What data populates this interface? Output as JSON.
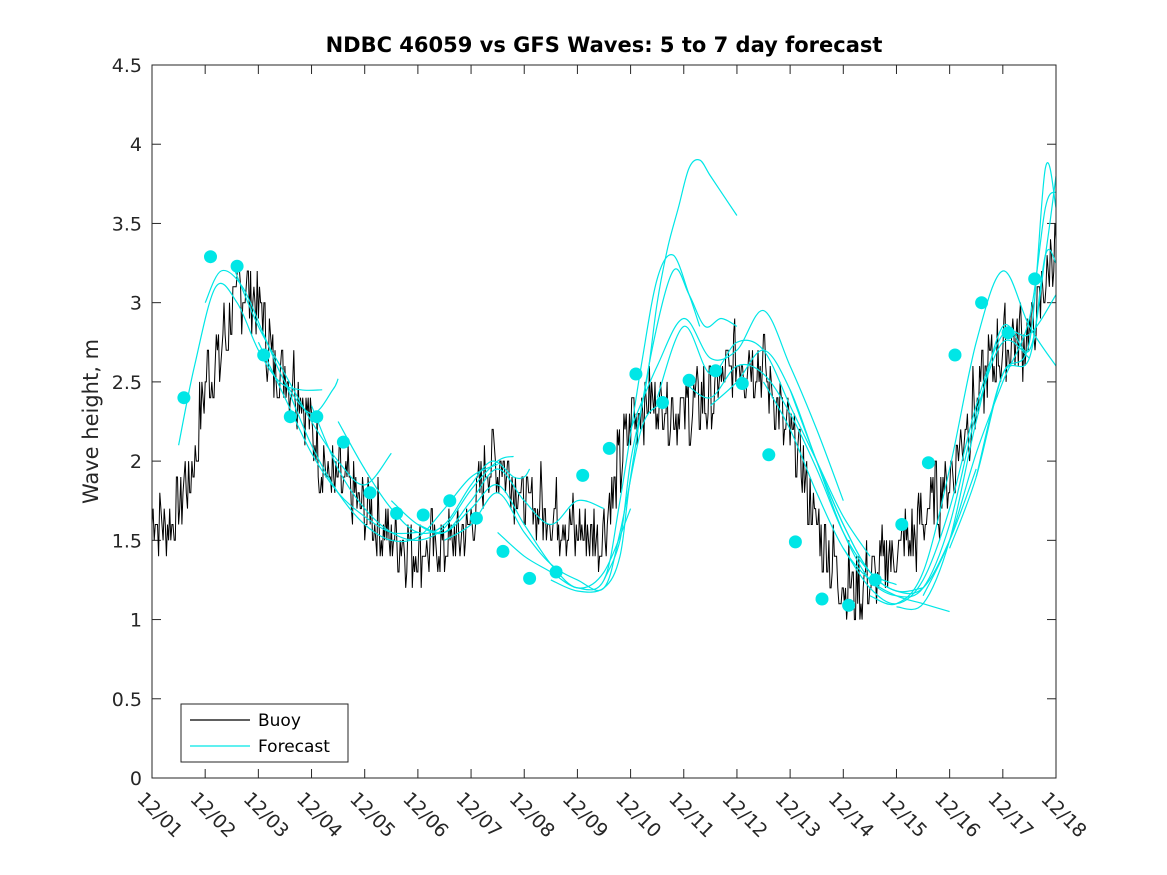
{
  "colors": {
    "buoy": "#000000",
    "forecast": "#00e6e6",
    "axis": "#262626",
    "background": "#ffffff"
  },
  "chart_data": {
    "type": "line",
    "title": "NDBC 46059 vs GFS Waves: 5 to 7 day forecast",
    "xlabel": "",
    "ylabel": "Wave height, m",
    "xlim": [
      0,
      17
    ],
    "ylim": [
      0,
      4.5
    ],
    "yticks": [
      0,
      0.5,
      1,
      1.5,
      2,
      2.5,
      3,
      3.5,
      4,
      4.5
    ],
    "ytick_labels": [
      "0",
      "0.5",
      "1",
      "1.5",
      "2",
      "2.5",
      "3",
      "3.5",
      "4",
      "4.5"
    ],
    "xticks": [
      0,
      1,
      2,
      3,
      4,
      5,
      6,
      7,
      8,
      9,
      10,
      11,
      12,
      13,
      14,
      15,
      16,
      17
    ],
    "xtick_labels": [
      "12/01",
      "12/02",
      "12/03",
      "12/04",
      "12/05",
      "12/06",
      "12/07",
      "12/08",
      "12/09",
      "12/10",
      "12/11",
      "12/12",
      "12/13",
      "12/14",
      "12/15",
      "12/16",
      "12/17",
      "12/18"
    ],
    "legend": {
      "position": "bottom-left",
      "entries": [
        "Buoy",
        "Forecast"
      ]
    },
    "buoy_trend": {
      "x": [
        0,
        0.3,
        0.5,
        0.8,
        1.0,
        1.3,
        1.7,
        2.0,
        2.3,
        2.7,
        3.0,
        3.3,
        3.7,
        4.0,
        4.5,
        5.0,
        5.5,
        6.0,
        6.3,
        6.6,
        7.0,
        7.3,
        7.7,
        8.0,
        8.4,
        8.6,
        9.0,
        9.3,
        9.7,
        10.0,
        10.5,
        11.0,
        11.5,
        11.8,
        12.2,
        12.5,
        12.8,
        13.0,
        13.3,
        13.7,
        14.0,
        14.3,
        14.7,
        15.0,
        15.3,
        15.7,
        16.0,
        16.3,
        16.6,
        17.0
      ],
      "y": [
        1.65,
        1.6,
        1.7,
        2.0,
        2.5,
        2.7,
        3.1,
        3.0,
        2.6,
        2.5,
        2.2,
        1.9,
        1.8,
        1.7,
        1.5,
        1.45,
        1.45,
        1.6,
        2.0,
        2.0,
        1.75,
        1.7,
        1.65,
        1.55,
        1.5,
        1.7,
        2.25,
        2.4,
        2.35,
        2.3,
        2.4,
        2.65,
        2.6,
        2.3,
        2.0,
        1.6,
        1.35,
        1.25,
        1.2,
        1.3,
        1.45,
        1.5,
        1.75,
        1.9,
        2.2,
        2.55,
        2.7,
        2.75,
        2.85,
        3.4
      ]
    },
    "buoy_amplitude": 0.22,
    "forecast_runs": [
      {
        "x": [
          0.5,
          0.8,
          1.2,
          1.6,
          2.0,
          2.4,
          2.8,
          3.2
        ],
        "y": [
          2.1,
          2.6,
          3.1,
          3.0,
          2.7,
          2.5,
          2.45,
          2.45
        ]
      },
      {
        "x": [
          1.0,
          1.3,
          1.7,
          2.1,
          2.5,
          3.0,
          3.4,
          3.5
        ],
        "y": [
          3.0,
          3.2,
          3.1,
          2.8,
          2.5,
          2.3,
          2.45,
          2.52
        ]
      },
      {
        "x": [
          1.5,
          2.0,
          2.5,
          3.0,
          3.5,
          4.0,
          4.5
        ],
        "y": [
          3.25,
          2.85,
          2.55,
          2.25,
          2.0,
          1.85,
          2.05
        ]
      },
      {
        "x": [
          2.0,
          2.5,
          3.0,
          3.5,
          4.0,
          4.5,
          5.0
        ],
        "y": [
          2.75,
          2.4,
          2.05,
          1.8,
          1.65,
          1.55,
          1.55
        ]
      },
      {
        "x": [
          2.5,
          3.0,
          3.5,
          4.0,
          4.5,
          5.0,
          5.5,
          6.0,
          6.5
        ],
        "y": [
          2.5,
          2.1,
          1.8,
          1.6,
          1.5,
          1.52,
          1.7,
          1.9,
          1.98
        ]
      },
      {
        "x": [
          3.0,
          3.5,
          4.0,
          4.5,
          5.0,
          5.5,
          6.0,
          6.5,
          6.8
        ],
        "y": [
          2.35,
          1.95,
          1.7,
          1.55,
          1.5,
          1.58,
          1.82,
          2.0,
          2.03
        ]
      },
      {
        "x": [
          3.5,
          4.0,
          4.5,
          5.0,
          5.5,
          6.0,
          6.4,
          6.8,
          7.0,
          7.1
        ],
        "y": [
          2.25,
          1.95,
          1.7,
          1.55,
          1.6,
          1.85,
          2.0,
          1.9,
          1.9,
          1.95
        ]
      },
      {
        "x": [
          4.5,
          5.0,
          5.5,
          6.0,
          6.5,
          7.0,
          7.5,
          8.0,
          8.5
        ],
        "y": [
          1.75,
          1.6,
          1.55,
          1.75,
          1.95,
          1.75,
          1.6,
          1.75,
          1.7
        ]
      },
      {
        "x": [
          5.0,
          5.5,
          6.0,
          6.5,
          7.0,
          7.5,
          8.0,
          8.5,
          9.0
        ],
        "y": [
          1.6,
          1.55,
          1.7,
          1.85,
          1.6,
          1.35,
          1.2,
          1.3,
          1.7
        ]
      },
      {
        "x": [
          5.5,
          6.0,
          6.5,
          7.0,
          7.5,
          8.0,
          8.5,
          8.8,
          9.2,
          9.5
        ],
        "y": [
          1.5,
          1.6,
          1.8,
          1.55,
          1.35,
          1.25,
          1.2,
          1.55,
          2.2,
          2.35
        ]
      },
      {
        "x": [
          6.5,
          7.0,
          7.5,
          8.0,
          8.5,
          8.8,
          9.2,
          9.5,
          9.8,
          10.1,
          10.3
        ],
        "y": [
          1.55,
          1.4,
          1.3,
          1.2,
          1.25,
          1.75,
          2.6,
          3.15,
          3.3,
          3.05,
          2.85
        ]
      },
      {
        "x": [
          7.5,
          8.0,
          8.5,
          8.8,
          9.0,
          9.4,
          9.8,
          10.1,
          10.4,
          10.7,
          11.0
        ],
        "y": [
          1.25,
          1.18,
          1.2,
          1.4,
          1.9,
          2.7,
          3.2,
          3.05,
          2.85,
          2.9,
          2.85
        ]
      },
      {
        "x": [
          8.5,
          8.8,
          9.0,
          9.3,
          9.5,
          9.7,
          9.9,
          10.1,
          10.3,
          10.5,
          10.8,
          11.0
        ],
        "y": [
          1.25,
          1.5,
          2.0,
          2.5,
          3.0,
          3.35,
          3.6,
          3.85,
          3.9,
          3.8,
          3.65,
          3.55
        ]
      },
      {
        "x": [
          9.0,
          9.5,
          10.0,
          10.5,
          11.0,
          11.5,
          12.0,
          12.5,
          13.0
        ],
        "y": [
          2.2,
          2.6,
          2.9,
          2.65,
          2.7,
          2.95,
          2.6,
          2.2,
          1.75
        ]
      },
      {
        "x": [
          9.5,
          10.0,
          10.5,
          11.0,
          11.5,
          12.0,
          12.5,
          13.0,
          13.5
        ],
        "y": [
          2.4,
          2.85,
          2.55,
          2.75,
          2.7,
          2.35,
          2.0,
          1.65,
          1.4
        ]
      },
      {
        "x": [
          10.0,
          10.5,
          11.0,
          11.5,
          12.0,
          12.5,
          13.0,
          13.5,
          14.0
        ],
        "y": [
          2.5,
          2.4,
          2.6,
          2.55,
          2.3,
          1.95,
          1.55,
          1.3,
          1.22
        ]
      },
      {
        "x": [
          10.5,
          11.0,
          11.5,
          12.0,
          12.5,
          13.0,
          13.5,
          14.0,
          14.5
        ],
        "y": [
          2.35,
          2.5,
          2.7,
          2.45,
          2.0,
          1.6,
          1.3,
          1.18,
          1.2
        ]
      },
      {
        "x": [
          11.5,
          12.0,
          12.5,
          13.0,
          13.5,
          14.0,
          14.5,
          15.0
        ],
        "y": [
          2.5,
          2.2,
          1.8,
          1.45,
          1.25,
          1.15,
          1.1,
          1.05
        ]
      },
      {
        "x": [
          12.0,
          12.5,
          13.0,
          13.5,
          14.0,
          14.5,
          15.0,
          15.5
        ],
        "y": [
          2.45,
          2.0,
          1.6,
          1.3,
          1.18,
          1.2,
          1.5,
          1.95
        ]
      },
      {
        "x": [
          12.5,
          13.0,
          13.5,
          14.0,
          14.5,
          15.0,
          15.5,
          16.0,
          16.5
        ],
        "y": [
          2.0,
          1.55,
          1.25,
          1.15,
          1.2,
          1.6,
          2.3,
          2.75,
          2.65
        ]
      },
      {
        "x": [
          13.0,
          13.5,
          14.0,
          14.5,
          15.0,
          15.5,
          16.0,
          16.5,
          17.0
        ],
        "y": [
          1.45,
          1.2,
          1.1,
          1.25,
          1.7,
          2.35,
          2.8,
          2.8,
          3.05
        ]
      },
      {
        "x": [
          13.5,
          14.0,
          14.5,
          15.0,
          15.5,
          16.0,
          16.5,
          17.0
        ],
        "y": [
          1.15,
          1.1,
          1.3,
          1.95,
          2.75,
          3.2,
          2.85,
          2.6
        ]
      },
      {
        "x": [
          14.0,
          14.5,
          15.0,
          15.5,
          16.0,
          16.5,
          16.8,
          17.0
        ],
        "y": [
          1.08,
          1.1,
          1.5,
          2.25,
          2.85,
          2.7,
          3.3,
          3.8
        ]
      },
      {
        "x": [
          14.5,
          15.0,
          15.5,
          16.0,
          16.5,
          16.8,
          17.0
        ],
        "y": [
          1.15,
          1.5,
          2.05,
          2.5,
          2.9,
          3.6,
          3.7
        ]
      },
      {
        "x": [
          15.0,
          15.5,
          16.0,
          16.5,
          16.8,
          17.0
        ],
        "y": [
          1.45,
          1.9,
          2.55,
          2.75,
          3.85,
          3.6
        ]
      },
      {
        "x": [
          15.5,
          16.0,
          16.5,
          16.8,
          17.0
        ],
        "y": [
          1.9,
          2.55,
          2.65,
          3.3,
          3.25
        ]
      }
    ],
    "forecast_points": {
      "x": [
        0.6,
        1.1,
        1.6,
        2.1,
        2.6,
        3.1,
        3.6,
        4.1,
        4.6,
        5.1,
        5.6,
        6.1,
        6.6,
        7.1,
        7.6,
        8.1,
        8.6,
        9.1,
        9.6,
        10.1,
        10.6,
        11.1,
        11.6,
        12.1,
        12.6,
        13.1,
        13.6,
        14.1,
        14.6,
        15.1,
        15.6,
        16.1,
        16.6
      ],
      "y": [
        2.4,
        3.29,
        3.23,
        2.67,
        2.28,
        2.28,
        2.12,
        1.8,
        1.67,
        1.66,
        1.75,
        1.64,
        1.43,
        1.26,
        1.3,
        1.91,
        2.08,
        2.55,
        2.37,
        2.51,
        2.57,
        2.49,
        2.04,
        1.49,
        1.13,
        1.09,
        1.25,
        1.6,
        1.99,
        2.67,
        3.0,
        2.81,
        3.15
      ]
    }
  }
}
